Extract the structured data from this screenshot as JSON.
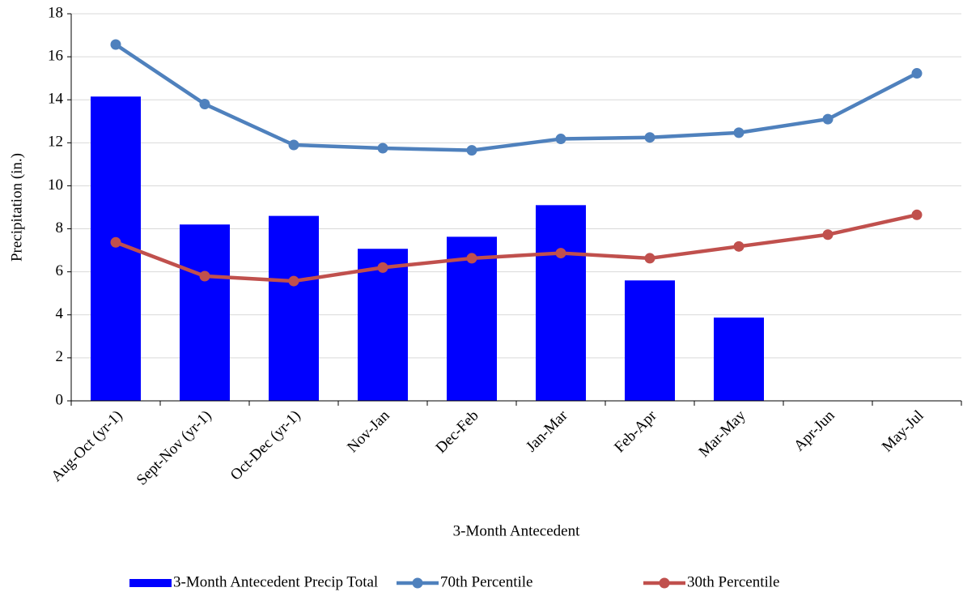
{
  "chart_data": {
    "type": "bar",
    "x_label": "3-Month Antecedent",
    "y_label": "Precipitation (in.)",
    "categories": [
      "Aug-Oct (yr-1)",
      "Sept-Nov (yr-1)",
      "Oct-Dec (yr-1)",
      "Nov-Jan",
      "Dec-Feb",
      "Jan-Mar",
      "Feb-Apr",
      "Mar-May",
      "Apr-Jun",
      "May-Jul"
    ],
    "series": [
      {
        "name": "3-Month Antecedent Precip Total",
        "type": "bar",
        "color": "#0000ff",
        "values": [
          14.15,
          8.2,
          8.6,
          7.07,
          7.63,
          9.1,
          5.6,
          3.87,
          null,
          null
        ]
      },
      {
        "name": "70th Percentile",
        "type": "line",
        "color": "#4f81bd",
        "values": [
          16.57,
          13.8,
          11.9,
          11.75,
          11.65,
          12.18,
          12.25,
          12.47,
          13.1,
          15.23
        ]
      },
      {
        "name": "30th Percentile",
        "type": "line",
        "color": "#c0504d",
        "values": [
          7.37,
          5.8,
          5.57,
          6.2,
          6.63,
          6.87,
          6.63,
          7.18,
          7.73,
          8.65
        ]
      }
    ],
    "ylim": [
      0,
      18
    ],
    "yticks": [
      0,
      2,
      4,
      6,
      8,
      10,
      12,
      14,
      16,
      18
    ],
    "grid": true,
    "legend": "bottom"
  }
}
